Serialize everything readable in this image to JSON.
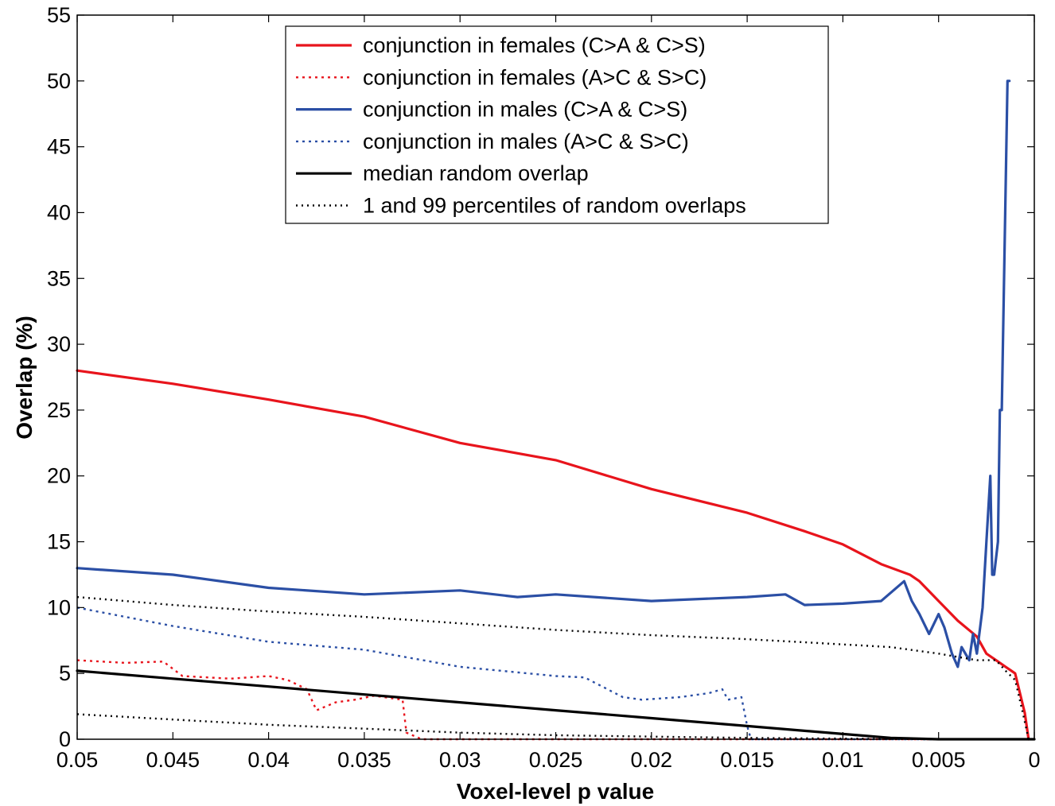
{
  "chart_data": {
    "type": "line",
    "title": "",
    "xlabel": "Voxel-level p value",
    "ylabel": "Overlap (%)",
    "xlim": [
      0.05,
      0
    ],
    "x_reversed": true,
    "ylim": [
      0,
      55
    ],
    "x_ticks": [
      0.05,
      0.045,
      0.04,
      0.035,
      0.03,
      0.025,
      0.02,
      0.015,
      0.01,
      0.005,
      0
    ],
    "x_tick_labels": [
      "0.05",
      "0.045",
      "0.04",
      "0.035",
      "0.03",
      "0.025",
      "0.02",
      "0.015",
      "0.01",
      "0.005",
      "0"
    ],
    "y_ticks": [
      0,
      5,
      10,
      15,
      20,
      25,
      30,
      35,
      40,
      45,
      50,
      55
    ],
    "y_tick_labels": [
      "0",
      "5",
      "10",
      "15",
      "20",
      "25",
      "30",
      "35",
      "40",
      "45",
      "50",
      "55"
    ],
    "grid": false,
    "legend_position": "top-center",
    "series": [
      {
        "name": "conjunction in females (C>A & C>S)",
        "color": "#e8141c",
        "style": "solid",
        "x": [
          0.05,
          0.045,
          0.04,
          0.035,
          0.03,
          0.025,
          0.02,
          0.015,
          0.012,
          0.01,
          0.008,
          0.0065,
          0.006,
          0.005,
          0.004,
          0.003,
          0.0025,
          0.002,
          0.0015,
          0.001,
          0.0005,
          0.0003
        ],
        "y": [
          28,
          27,
          25.8,
          24.5,
          22.5,
          21.2,
          19,
          17.2,
          15.8,
          14.8,
          13.3,
          12.5,
          12,
          10.5,
          9,
          7.8,
          6.5,
          6,
          5.5,
          5,
          2,
          0
        ]
      },
      {
        "name": "conjunction in females (A>C & S>C)",
        "color": "#e8141c",
        "style": "dotted",
        "x": [
          0.05,
          0.0475,
          0.0455,
          0.0445,
          0.042,
          0.04,
          0.039,
          0.038,
          0.0375,
          0.0365,
          0.0355,
          0.0345,
          0.033,
          0.0328,
          0.032,
          0.02,
          0.01,
          0
        ],
        "y": [
          6,
          5.8,
          5.9,
          4.8,
          4.6,
          4.8,
          4.5,
          3.8,
          2.2,
          2.8,
          3.0,
          3.3,
          3.0,
          0.5,
          0,
          0,
          0,
          0
        ]
      },
      {
        "name": "conjunction in males (C>A & C>S)",
        "color": "#2b4fa5",
        "style": "solid",
        "x": [
          0.05,
          0.045,
          0.04,
          0.035,
          0.03,
          0.027,
          0.025,
          0.02,
          0.015,
          0.013,
          0.012,
          0.01,
          0.008,
          0.0068,
          0.0064,
          0.006,
          0.0055,
          0.005,
          0.0047,
          0.0043,
          0.004,
          0.0038,
          0.0034,
          0.0032,
          0.003,
          0.0027,
          0.0025,
          0.0023,
          0.0022,
          0.0021,
          0.0019,
          0.0018,
          0.0017,
          0.0014,
          0.0013
        ],
        "y": [
          13,
          12.5,
          11.5,
          11,
          11.3,
          10.8,
          11,
          10.5,
          10.8,
          11,
          10.2,
          10.3,
          10.5,
          12,
          10.5,
          9.5,
          8.0,
          9.5,
          8.5,
          6.5,
          5.5,
          7.0,
          6.0,
          8.0,
          6.5,
          10.0,
          15.0,
          20.0,
          12.5,
          12.5,
          15.0,
          25.0,
          25.0,
          50.0,
          50.0
        ]
      },
      {
        "name": "conjunction in males (A>C & S>C)",
        "color": "#2b4fa5",
        "style": "dotted",
        "x": [
          0.05,
          0.045,
          0.04,
          0.035,
          0.03,
          0.025,
          0.0235,
          0.0215,
          0.0205,
          0.0185,
          0.017,
          0.0163,
          0.016,
          0.0153,
          0.015,
          0.0148,
          0.01,
          0.005,
          0
        ],
        "y": [
          10,
          8.6,
          7.4,
          6.8,
          5.5,
          4.8,
          4.7,
          3.2,
          3.0,
          3.2,
          3.5,
          3.8,
          3.0,
          3.2,
          1.0,
          0,
          0,
          0,
          0
        ]
      },
      {
        "name": "median random overlap",
        "color": "#000000",
        "style": "solid",
        "x": [
          0.05,
          0.045,
          0.04,
          0.035,
          0.03,
          0.025,
          0.02,
          0.015,
          0.01,
          0.0075,
          0.005,
          0
        ],
        "y": [
          5.2,
          4.6,
          4.0,
          3.4,
          2.8,
          2.2,
          1.6,
          1.0,
          0.4,
          0.1,
          0,
          0
        ]
      },
      {
        "name": "1 and 99 percentiles of random overlaps",
        "color": "#000000",
        "style": "dotted",
        "segments": [
          {
            "x": [
              0.05,
              0.045,
              0.04,
              0.035,
              0.03,
              0.025,
              0.02,
              0.015,
              0.01,
              0.0075,
              0.005,
              0.003,
              0.002,
              0.0015,
              0.001,
              0.0006,
              0.0003
            ],
            "y": [
              10.8,
              10.2,
              9.7,
              9.3,
              8.8,
              8.3,
              7.9,
              7.6,
              7.2,
              7.0,
              6.5,
              6.0,
              6.0,
              5.2,
              4.5,
              2.0,
              0
            ]
          },
          {
            "x": [
              0.05,
              0.045,
              0.04,
              0.035,
              0.03,
              0.025,
              0.02,
              0.015,
              0.01,
              0.005,
              0
            ],
            "y": [
              1.9,
              1.5,
              1.1,
              0.8,
              0.5,
              0.3,
              0.2,
              0.1,
              0.05,
              0,
              0
            ]
          }
        ]
      }
    ]
  }
}
